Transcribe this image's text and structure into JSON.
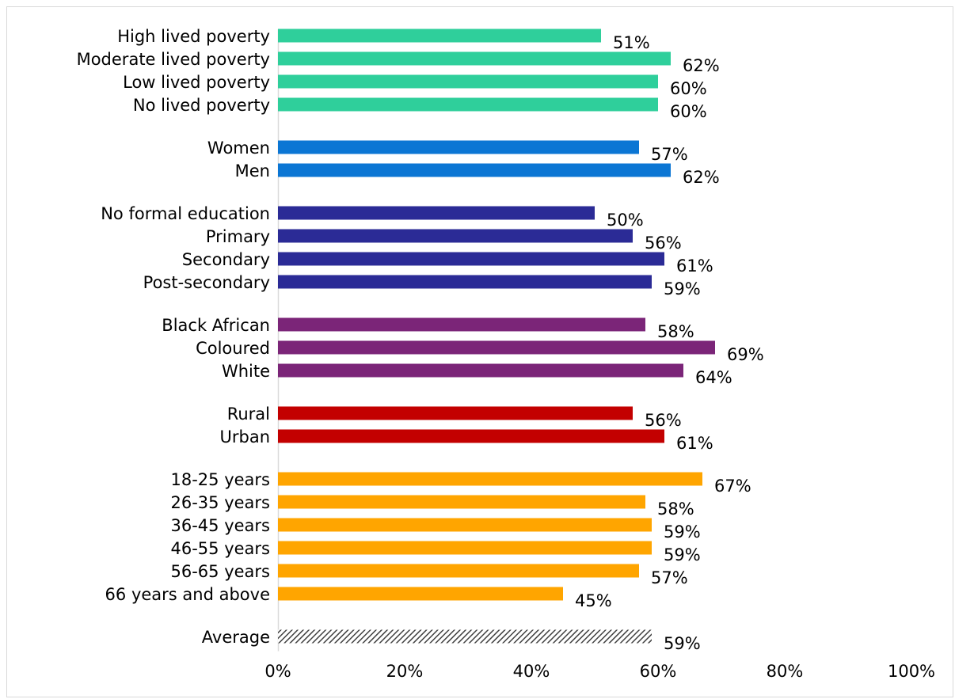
{
  "chart_data": {
    "type": "bar",
    "orientation": "horizontal",
    "x_ticks": [
      "0%",
      "20%",
      "40%",
      "60%",
      "80%",
      "100%"
    ],
    "xlim": [
      0,
      100
    ],
    "value_suffix": "%",
    "grid": false,
    "legend": "none",
    "groups": [
      {
        "color": "#2fcf9b",
        "categories": [
          "High lived poverty",
          "Moderate lived poverty",
          "Low lived poverty",
          "No lived poverty"
        ],
        "values": [
          51,
          62,
          60,
          60
        ]
      },
      {
        "color": "#0b76d4",
        "categories": [
          "Women",
          "Men"
        ],
        "values": [
          57,
          62
        ]
      },
      {
        "color": "#2b2b96",
        "categories": [
          "No formal education",
          "Primary",
          "Secondary",
          "Post-secondary"
        ],
        "values": [
          50,
          56,
          61,
          59
        ]
      },
      {
        "color": "#7b2578",
        "categories": [
          "Black African",
          "Coloured",
          "White"
        ],
        "values": [
          58,
          69,
          64
        ]
      },
      {
        "color": "#c30000",
        "categories": [
          "Rural",
          "Urban"
        ],
        "values": [
          56,
          61
        ]
      },
      {
        "color": "#ffa500",
        "categories": [
          "18-25 years",
          "26-35 years",
          "36-45 years",
          "46-55 years",
          "56-65 years",
          "66 years and above"
        ],
        "values": [
          67,
          58,
          59,
          59,
          57,
          45
        ]
      },
      {
        "color": "#404040",
        "pattern": "hatched",
        "categories": [
          "Average"
        ],
        "values": [
          59
        ]
      }
    ]
  }
}
